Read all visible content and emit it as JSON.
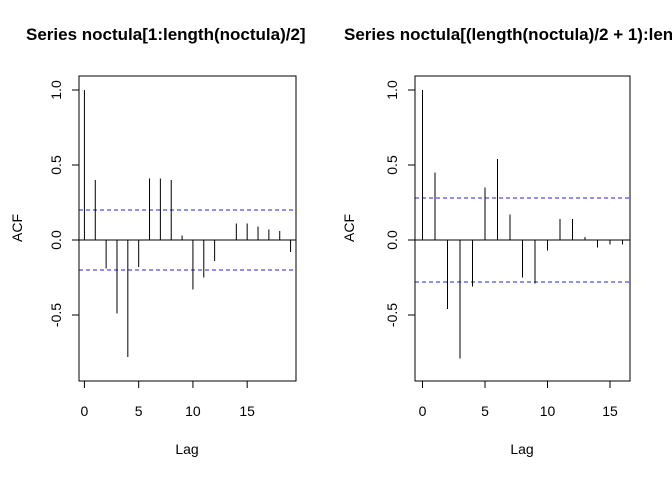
{
  "chart_data": [
    {
      "type": "bar",
      "title": "Series  noctula[1:length(noctula)/2]",
      "xlabel": "Lag",
      "ylabel": "ACF",
      "xlim": [
        -0.5,
        19.5
      ],
      "ylim": [
        -0.86,
        1.0
      ],
      "x_ticks": [
        0,
        5,
        10,
        15
      ],
      "y_ticks": [
        -0.5,
        0.0,
        0.5,
        1.0
      ],
      "y_tick_labels": [
        "-0.5",
        "0.0",
        "0.5",
        "1.0"
      ],
      "ci": 0.2,
      "x": [
        0,
        1,
        2,
        3,
        4,
        5,
        6,
        7,
        8,
        9,
        10,
        11,
        12,
        13,
        14,
        15,
        16,
        17,
        18,
        19
      ],
      "values": [
        1.0,
        0.4,
        -0.19,
        -0.49,
        -0.78,
        -0.18,
        0.41,
        0.41,
        0.4,
        0.03,
        -0.33,
        -0.25,
        -0.14,
        0.0,
        0.11,
        0.11,
        0.09,
        0.07,
        0.06,
        -0.08
      ]
    },
    {
      "type": "bar",
      "title": "Series  noctula[(length(noctula)/2 + 1):length(noctula)]",
      "xlabel": "Lag",
      "ylabel": "ACF",
      "xlim": [
        -0.6,
        16.6
      ],
      "ylim": [
        -0.86,
        1.0
      ],
      "x_ticks": [
        0,
        5,
        10,
        15
      ],
      "y_ticks": [
        -0.5,
        0.0,
        0.5,
        1.0
      ],
      "y_tick_labels": [
        "-0.5",
        "0.0",
        "0.5",
        "1.0"
      ],
      "ci": 0.28,
      "x": [
        0,
        1,
        2,
        3,
        4,
        5,
        6,
        7,
        8,
        9,
        10,
        11,
        12,
        13,
        14,
        15,
        16
      ],
      "values": [
        1.0,
        0.45,
        -0.46,
        -0.79,
        -0.31,
        0.35,
        0.54,
        0.17,
        -0.25,
        -0.29,
        -0.07,
        0.14,
        0.14,
        0.02,
        -0.05,
        -0.03,
        -0.03
      ]
    }
  ]
}
